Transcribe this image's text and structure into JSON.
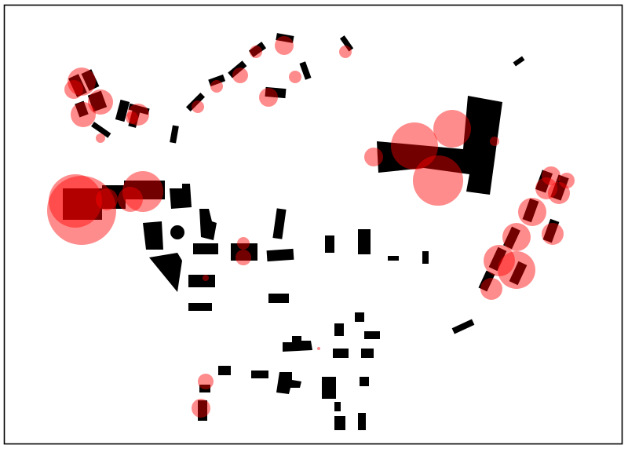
{
  "map": {
    "building_fill": "#000000",
    "circle_fill": "#ff0000",
    "circle_opacity": 0.45,
    "background": "#ffffff",
    "frame_color": "#000000"
  }
}
